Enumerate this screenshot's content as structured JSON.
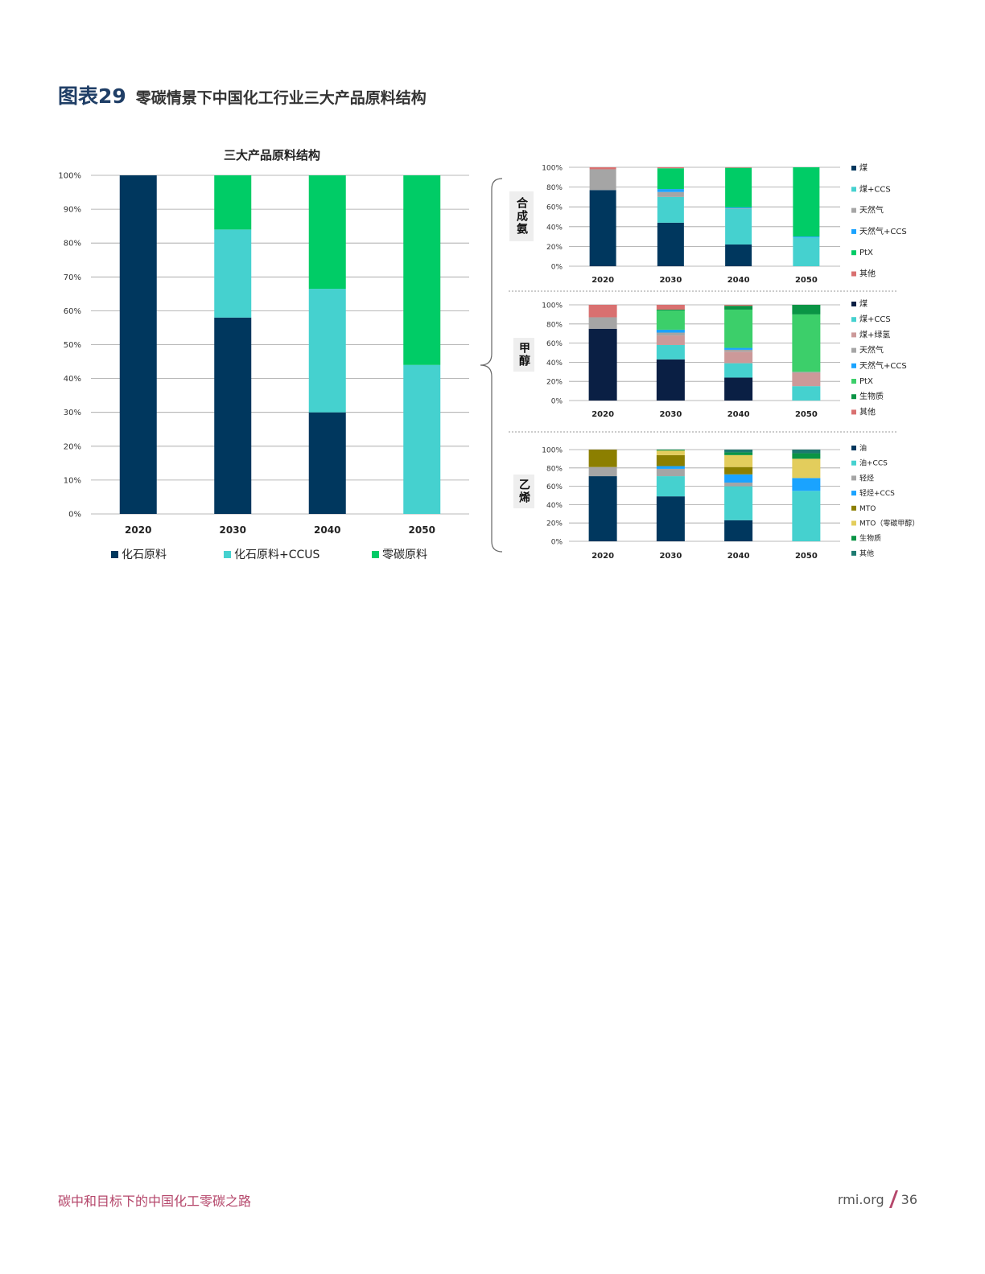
{
  "figure": {
    "number": "图表29",
    "title": "零碳情景下中国化工行业三大产品原料结构"
  },
  "footer": {
    "left": "碳中和目标下的中国化工零碳之路",
    "site": "rmi.org",
    "page": "36"
  },
  "colors": {
    "navy": "#00375e",
    "teal": "#45d1cf",
    "green": "#00cc66",
    "gray": "#a5a5a5",
    "blue": "#1aa3ff",
    "pink": "#d97070",
    "rose": "#cc9999",
    "ptx": "#3ccf6a",
    "bio": "#0a9445",
    "olive": "#8c7f00",
    "yellow": "#e3cd5c",
    "darkteal": "#1d7a70",
    "darknavy": "#0a1f44"
  },
  "chart_data": [
    {
      "id": "main",
      "type": "bar",
      "stacked": true,
      "title": "三大产品原料结构",
      "categories": [
        "2020",
        "2030",
        "2040",
        "2050"
      ],
      "yticks": [
        "0%",
        "10%",
        "20%",
        "30%",
        "40%",
        "50%",
        "60%",
        "70%",
        "80%",
        "90%",
        "100%"
      ],
      "ylim": [
        0,
        100
      ],
      "series": [
        {
          "name": "化石原料",
          "color": "navy",
          "values": [
            100,
            58,
            30,
            0
          ]
        },
        {
          "name": "化石原料+CCUS",
          "color": "teal",
          "values": [
            0,
            26,
            36.5,
            44
          ]
        },
        {
          "name": "零碳原料",
          "color": "green",
          "values": [
            0,
            16,
            33.5,
            56
          ]
        }
      ]
    },
    {
      "id": "ammonia",
      "type": "bar",
      "stacked": true,
      "label": "合成氨",
      "categories": [
        "2020",
        "2030",
        "2040",
        "2050"
      ],
      "yticks": [
        "0%",
        "20%",
        "40%",
        "60%",
        "80%",
        "100%"
      ],
      "ylim": [
        0,
        100
      ],
      "series": [
        {
          "name": "煤",
          "color": "navy",
          "values": [
            77,
            44,
            22,
            0
          ]
        },
        {
          "name": "煤+CCS",
          "color": "teal",
          "values": [
            0,
            26,
            36,
            29
          ]
        },
        {
          "name": "天然气",
          "color": "gray",
          "values": [
            21,
            5,
            0.5,
            0
          ]
        },
        {
          "name": "天然气+CCS",
          "color": "blue",
          "values": [
            0,
            3,
            1,
            1
          ]
        },
        {
          "name": "PtX",
          "color": "green",
          "values": [
            0,
            21,
            40,
            70
          ]
        },
        {
          "name": "其他",
          "color": "pink",
          "values": [
            2,
            1,
            0.5,
            0
          ]
        }
      ]
    },
    {
      "id": "methanol",
      "type": "bar",
      "stacked": true,
      "label": "甲醇",
      "categories": [
        "2020",
        "2030",
        "2040",
        "2050"
      ],
      "yticks": [
        "0%",
        "20%",
        "40%",
        "60%",
        "80%",
        "100%"
      ],
      "ylim": [
        0,
        100
      ],
      "series": [
        {
          "name": "煤",
          "color": "darknavy",
          "values": [
            75,
            43,
            24,
            0
          ]
        },
        {
          "name": "煤+CCS",
          "color": "teal",
          "values": [
            0,
            15,
            15,
            15
          ]
        },
        {
          "name": "煤+绿氢",
          "color": "rose",
          "values": [
            0,
            10,
            12,
            14
          ]
        },
        {
          "name": "天然气",
          "color": "gray",
          "values": [
            12,
            3,
            2,
            1
          ]
        },
        {
          "name": "天然气+CCS",
          "color": "blue",
          "values": [
            0,
            3,
            2,
            0
          ]
        },
        {
          "name": "PtX",
          "color": "ptx",
          "values": [
            0,
            20,
            40,
            60
          ]
        },
        {
          "name": "生物质",
          "color": "bio",
          "values": [
            0,
            1,
            4,
            10
          ]
        },
        {
          "name": "其他",
          "color": "pink",
          "values": [
            13,
            5,
            1,
            0
          ]
        }
      ]
    },
    {
      "id": "ethylene",
      "type": "bar",
      "stacked": true,
      "label": "乙烯",
      "categories": [
        "2020",
        "2030",
        "2040",
        "2050"
      ],
      "yticks": [
        "0%",
        "20%",
        "40%",
        "60%",
        "80%",
        "100%"
      ],
      "ylim": [
        0,
        100
      ],
      "series": [
        {
          "name": "油",
          "color": "navy",
          "values": [
            71,
            49,
            23,
            0
          ]
        },
        {
          "name": "油+CCS",
          "color": "teal",
          "values": [
            0,
            22,
            37,
            55
          ]
        },
        {
          "name": "轻烃",
          "color": "gray",
          "values": [
            10,
            8,
            4,
            0
          ]
        },
        {
          "name": "轻烃+CCS",
          "color": "blue",
          "values": [
            0,
            3,
            9,
            14
          ]
        },
        {
          "name": "MTO",
          "color": "olive",
          "values": [
            19,
            12,
            8,
            0
          ]
        },
        {
          "name": "MTO（零碳甲醇）",
          "color": "yellow",
          "values": [
            0,
            5,
            13,
            21
          ]
        },
        {
          "name": "生物质",
          "color": "bio",
          "values": [
            0,
            1,
            3,
            6
          ]
        },
        {
          "name": "其他",
          "color": "darkteal",
          "values": [
            0,
            0,
            3,
            4
          ]
        }
      ]
    }
  ]
}
